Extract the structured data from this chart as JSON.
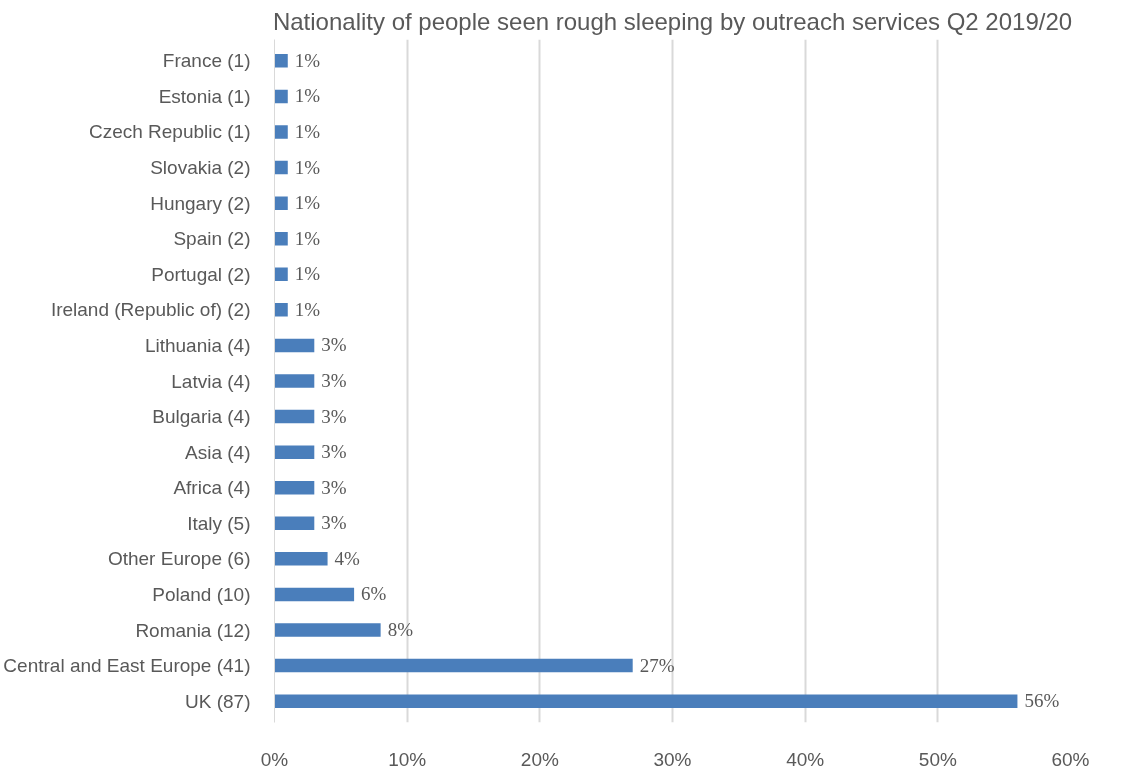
{
  "chart_data": {
    "type": "bar",
    "orientation": "horizontal",
    "title": "Nationality of people seen rough sleeping by outreach services Q2 2019/20",
    "categories": [
      "France (1)",
      "Estonia (1)",
      "Czech Republic (1)",
      "Slovakia (2)",
      "Hungary (2)",
      "Spain (2)",
      "Portugal (2)",
      "Ireland (Republic of) (2)",
      "Lithuania (4)",
      "Latvia (4)",
      "Bulgaria (4)",
      "Asia (4)",
      "Africa (4)",
      "Italy (5)",
      "Other Europe (6)",
      "Poland (10)",
      "Romania (12)",
      "Central and East Europe (41)",
      "UK (87)"
    ],
    "values": [
      1,
      1,
      1,
      1,
      1,
      1,
      1,
      1,
      3,
      3,
      3,
      3,
      3,
      3,
      4,
      6,
      8,
      27,
      56
    ],
    "value_labels": [
      "1%",
      "1%",
      "1%",
      "1%",
      "1%",
      "1%",
      "1%",
      "1%",
      "3%",
      "3%",
      "3%",
      "3%",
      "3%",
      "3%",
      "4%",
      "6%",
      "8%",
      "27%",
      "56%"
    ],
    "color": "#4a7ebb",
    "xlim": [
      0,
      60
    ],
    "xticks": [
      {
        "value": 0,
        "label": "0%"
      },
      {
        "value": 10,
        "label": "10%"
      },
      {
        "value": 20,
        "label": "20%"
      },
      {
        "value": 30,
        "label": "30%"
      },
      {
        "value": 40,
        "label": "40%"
      },
      {
        "value": 50,
        "label": "50%"
      },
      {
        "value": 60,
        "label": "60%"
      }
    ],
    "grid": "x"
  }
}
